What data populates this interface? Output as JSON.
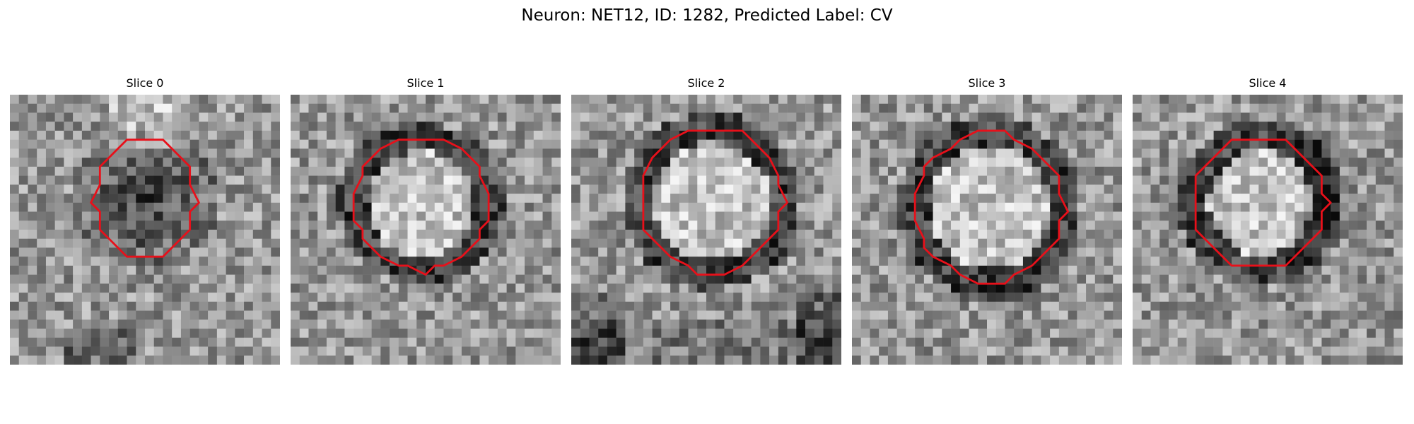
{
  "figure": {
    "title": "Neuron: NET12, ID: 1282, Predicted Label: CV",
    "grid_size": 30,
    "contour_color": "#e8101a"
  },
  "panels": [
    {
      "title": "Slice 0",
      "content": "dark roughly circular blob (cell body) outlined by a red contour on a noisy grayscale background"
    },
    {
      "title": "Slice 1",
      "content": "bright circular interior with dark rim, outlined by a red contour"
    },
    {
      "title": "Slice 2",
      "content": "bright circular interior with thick dark rim, outlined by a red contour"
    },
    {
      "title": "Slice 3",
      "content": "bright circular interior with dark rim, outlined by a red contour"
    },
    {
      "title": "Slice 4",
      "content": "bright circular interior with dark rim on right side, outlined by a red contour"
    }
  ]
}
